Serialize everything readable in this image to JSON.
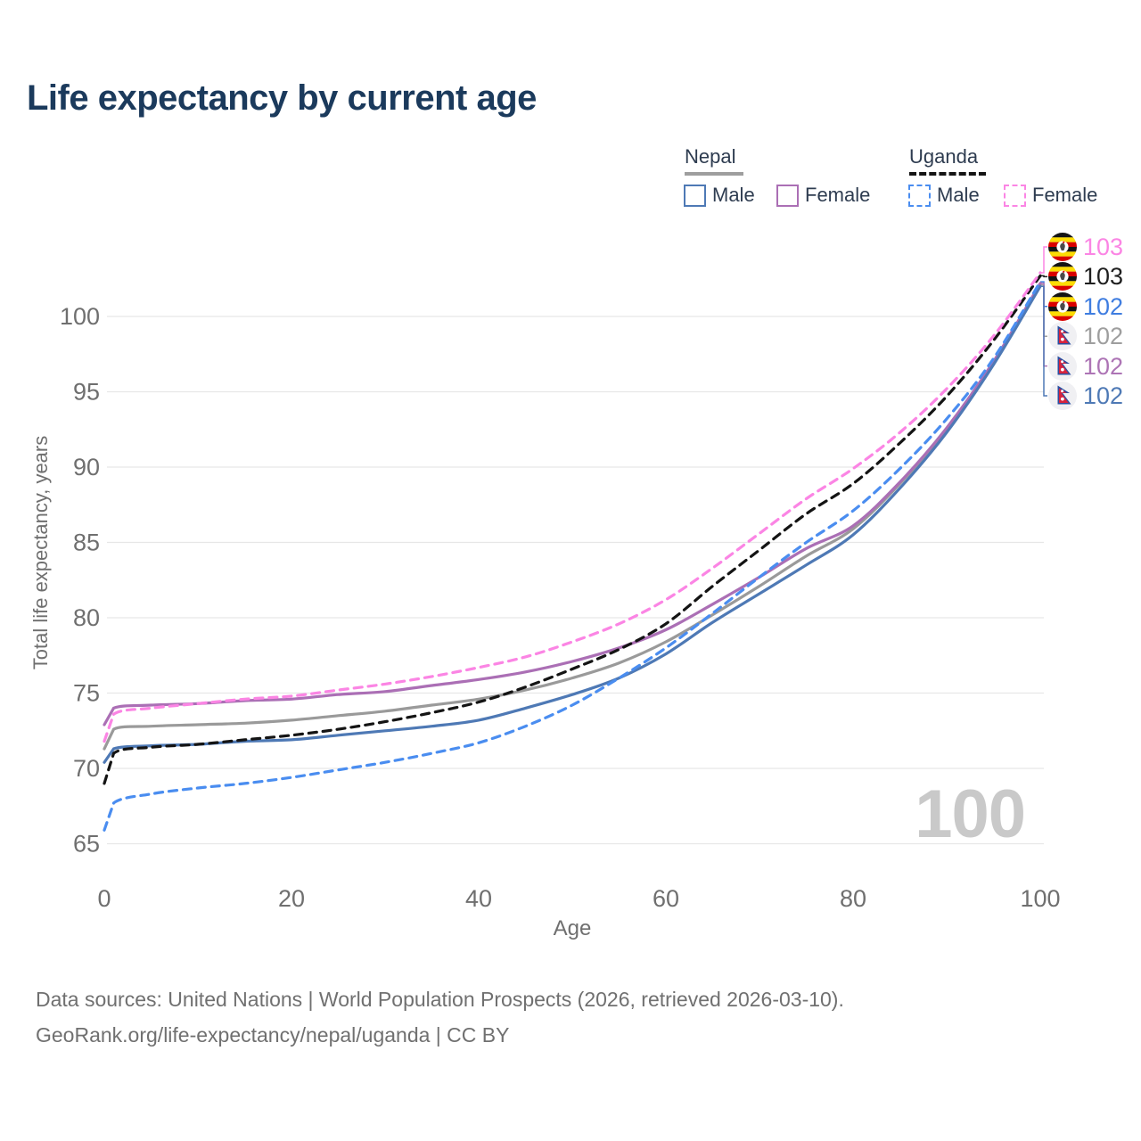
{
  "title": "Life expectancy by current age",
  "watermark": "100",
  "legend": {
    "groups": [
      {
        "country": "Nepal",
        "line_style": "solid",
        "underline_color": "#9e9e9e",
        "items": [
          {
            "label": "Male",
            "color": "#4e79b5"
          },
          {
            "label": "Female",
            "color": "#ab6fb5"
          }
        ]
      },
      {
        "country": "Uganda",
        "line_style": "dashed",
        "underline_color": "#141414",
        "items": [
          {
            "label": "Male",
            "color": "#4a8df0"
          },
          {
            "label": "Female",
            "color": "#fb85e4"
          }
        ]
      }
    ]
  },
  "footer": {
    "line1": "Data sources: United Nations | World Population Prospects (2026, retrieved 2026-03-10).",
    "line2": "GeoRank.org/life-expectancy/nepal/uganda | CC BY"
  },
  "chart_data": {
    "type": "line",
    "title": "Life expectancy by current age",
    "xlabel": "Age",
    "ylabel": "Total life expectancy, years",
    "xlim": [
      0,
      100
    ],
    "ylim": [
      65,
      103
    ],
    "x_ticks": [
      0,
      20,
      40,
      60,
      80,
      100
    ],
    "y_ticks": [
      65,
      70,
      75,
      80,
      85,
      90,
      95,
      100
    ],
    "grid": "horizontal",
    "legend_position": "top-right",
    "x": [
      0,
      1,
      5,
      10,
      15,
      20,
      25,
      30,
      35,
      40,
      45,
      50,
      55,
      60,
      65,
      70,
      75,
      80,
      85,
      90,
      95,
      100
    ],
    "series": [
      {
        "name": "Nepal Total",
        "country": "Nepal",
        "sex": "Both",
        "style": "solid",
        "color": "#9a9a9a",
        "values": [
          71.3,
          72.6,
          72.8,
          72.9,
          73.0,
          73.2,
          73.5,
          73.8,
          74.2,
          74.6,
          75.2,
          76.0,
          77.0,
          78.4,
          80.2,
          82.1,
          84.1,
          85.9,
          88.9,
          92.5,
          96.9,
          102.1
        ]
      },
      {
        "name": "Nepal Female",
        "country": "Nepal",
        "sex": "Female",
        "style": "solid",
        "color": "#ab6fb5",
        "values": [
          72.9,
          74.0,
          74.2,
          74.3,
          74.5,
          74.6,
          74.9,
          75.1,
          75.5,
          75.9,
          76.4,
          77.1,
          78.0,
          79.2,
          80.9,
          82.7,
          84.6,
          86.1,
          89.0,
          92.6,
          97.0,
          102.2
        ]
      },
      {
        "name": "Nepal Male",
        "country": "Nepal",
        "sex": "Male",
        "style": "solid",
        "color": "#4e79b5",
        "values": [
          70.4,
          71.3,
          71.5,
          71.6,
          71.8,
          71.9,
          72.2,
          72.5,
          72.8,
          73.2,
          74.0,
          74.9,
          76.0,
          77.6,
          79.7,
          81.6,
          83.5,
          85.5,
          88.6,
          92.3,
          96.8,
          102.0
        ]
      },
      {
        "name": "Uganda Total",
        "country": "Uganda",
        "sex": "Both",
        "style": "dashed",
        "color": "#141414",
        "values": [
          69.0,
          71.0,
          71.4,
          71.6,
          71.9,
          72.2,
          72.6,
          73.1,
          73.7,
          74.4,
          75.4,
          76.6,
          77.9,
          79.6,
          82.1,
          84.5,
          86.9,
          88.9,
          91.6,
          94.7,
          98.4,
          102.7
        ]
      },
      {
        "name": "Uganda Male",
        "country": "Uganda",
        "sex": "Male",
        "style": "dashed",
        "color": "#4a8df0",
        "values": [
          65.9,
          67.7,
          68.3,
          68.7,
          69.0,
          69.4,
          69.9,
          70.4,
          71.0,
          71.7,
          72.8,
          74.2,
          76.0,
          78.0,
          80.3,
          82.7,
          85.0,
          87.1,
          89.9,
          93.2,
          97.2,
          102.3
        ]
      },
      {
        "name": "Uganda Female",
        "country": "Uganda",
        "sex": "Female",
        "style": "dashed",
        "color": "#fb85e4",
        "values": [
          71.8,
          73.6,
          74.0,
          74.3,
          74.6,
          74.8,
          75.2,
          75.6,
          76.1,
          76.7,
          77.4,
          78.4,
          79.6,
          81.2,
          83.3,
          85.6,
          87.9,
          89.9,
          92.3,
          95.2,
          98.7,
          102.9
        ]
      }
    ],
    "end_labels": [
      {
        "value": "103",
        "flag": "uganda",
        "series": "Uganda Female",
        "color": "#fb85e4"
      },
      {
        "value": "103",
        "flag": "uganda",
        "series": "Uganda Total",
        "color": "#1f1f1f"
      },
      {
        "value": "102",
        "flag": "uganda",
        "series": "Uganda Male",
        "color": "#3f7de0"
      },
      {
        "value": "102",
        "flag": "nepal",
        "series": "Nepal Total",
        "color": "#9e9e9e"
      },
      {
        "value": "102",
        "flag": "nepal",
        "series": "Nepal Female",
        "color": "#ad74b5"
      },
      {
        "value": "102",
        "flag": "nepal",
        "series": "Nepal Male",
        "color": "#4e79b5"
      }
    ]
  }
}
